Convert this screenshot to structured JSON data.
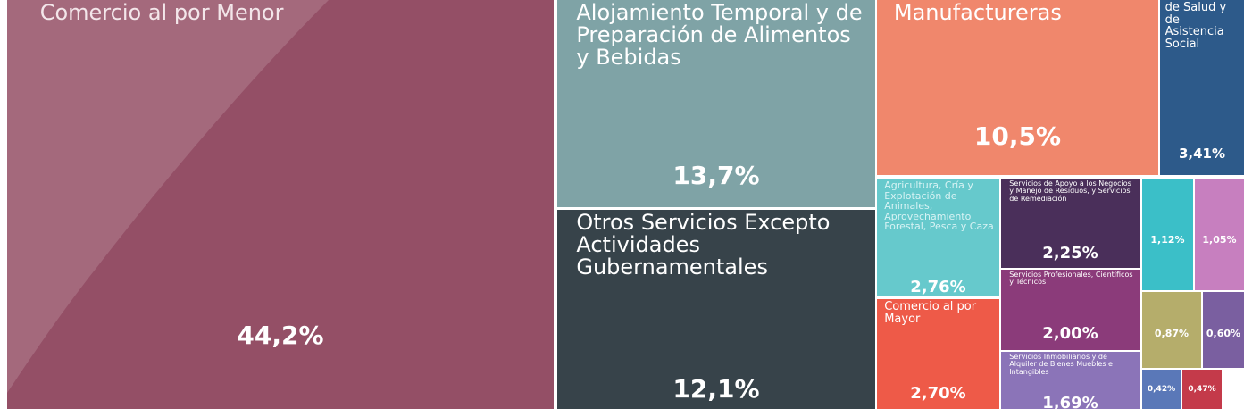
{
  "chart_data": {
    "type": "treemap",
    "categories": [
      "Comercio al por Menor",
      "Alojamiento Temporal y de Preparación de Alimentos y Bebidas",
      "Otros Servicios Excepto Actividades Gubernamentales",
      "Manufactureras",
      "de Salud y de Asistencia Social",
      "Agricultura, Cría y Explotación de Animales, Aprovechamiento Forestal, Pesca y Caza",
      "Servicios de Apoyo a los Negocios y Manejo de Residuos, y Servicios de Remediación",
      "Servicios Profesionales, Científicos y Técnicos",
      "Comercio al por Mayor",
      "Servicios Inmobiliarios y de Alquiler de Bienes Muebles e Intangibles",
      null,
      null,
      null,
      null,
      null,
      null
    ],
    "values": [
      44.2,
      13.7,
      12.1,
      10.5,
      3.41,
      2.76,
      2.25,
      2.0,
      2.7,
      1.69,
      1.12,
      1.05,
      0.87,
      0.6,
      0.42,
      0.47
    ],
    "value_labels": [
      "44,2%",
      "13,7%",
      "12,1%",
      "10,5%",
      "3,41%",
      "2,76%",
      "2,25%",
      "2,00%",
      "2,70%",
      "1,69%",
      "1,12%",
      "1,05%",
      "0,87%",
      "0,60%",
      "0,42%",
      "0,47%"
    ],
    "colors": [
      "#944f66",
      "#7fa3a6",
      "#37434a",
      "#f0876c",
      "#2d5a8a",
      "#66c9cc",
      "#4a2f5a",
      "#8b3b7a",
      "#ee5a48",
      "#8b74b8",
      "#3bbfc8",
      "#c77fbf",
      "#b5ad6b",
      "#7a5fa0",
      "#5a78b8",
      "#c43a4a"
    ]
  }
}
